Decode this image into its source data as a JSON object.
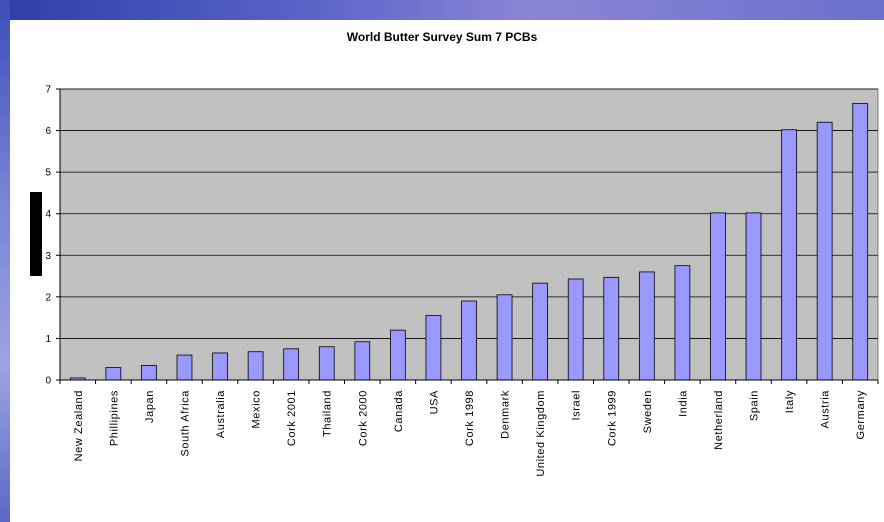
{
  "chart_data": {
    "type": "bar",
    "title": "World Butter Survey Sum 7 PCBs",
    "xlabel": "",
    "ylabel": "",
    "ylim": [
      0,
      7
    ],
    "yticks": [
      0,
      1,
      2,
      3,
      4,
      5,
      6,
      7
    ],
    "grid": true,
    "legend": "none",
    "categories": [
      "New Zealand",
      "Phillipines",
      "Japan",
      "South Africa",
      "Australia",
      "Mexico",
      "Cork 2001",
      "Thailand",
      "Cork 2000",
      "Canada",
      "USA",
      "Cork 1998",
      "Denmark",
      "United Kingdom",
      "Israel",
      "Cork 1999",
      "Sweden",
      "India",
      "Netherland",
      "Spain",
      "Italy",
      "Austria",
      "Germany"
    ],
    "values": [
      0.05,
      0.3,
      0.35,
      0.6,
      0.65,
      0.68,
      0.75,
      0.8,
      0.92,
      1.2,
      1.55,
      1.9,
      2.05,
      2.33,
      2.43,
      2.47,
      2.6,
      2.75,
      4.02,
      4.02,
      6.02,
      6.2,
      6.65
    ],
    "colors": {
      "bar_fill": "#9999ff",
      "bar_stroke": "#000000",
      "plot_background": "#c0c0c0",
      "gridline": "#000000"
    }
  }
}
